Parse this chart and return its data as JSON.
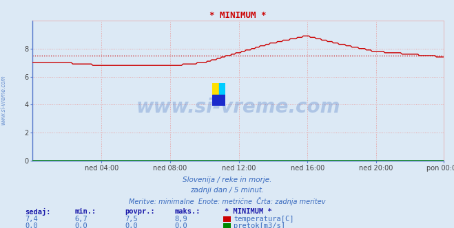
{
  "title": "* MINIMUM *",
  "background_color": "#dce9f5",
  "plot_bg_color": "#dce9f5",
  "grid_color": "#e8a0a0",
  "xlabel_ticks": [
    "ned 04:00",
    "ned 08:00",
    "ned 12:00",
    "ned 16:00",
    "ned 20:00",
    "pon 00:00"
  ],
  "ylim": [
    0,
    10
  ],
  "yticks": [
    0,
    2,
    4,
    6,
    8
  ],
  "temp_color": "#cc0000",
  "pretok_color": "#008800",
  "avg_line_color": "#cc0000",
  "avg_line_value": 7.5,
  "watermark_text": "www.si-vreme.com",
  "watermark_color": "#3a6bbf",
  "watermark_alpha": 0.28,
  "side_text": "www.si-vreme.com",
  "subtitle1": "Slovenija / reke in morje.",
  "subtitle2": "zadnji dan / 5 minut.",
  "subtitle3": "Meritve: minimalne  Enote: metrične  Črta: zadnja meritev",
  "subtitle_color": "#3a6bbf",
  "table_headers": [
    "sedaj:",
    "min.:",
    "povpr.:",
    "maks.:",
    "* MINIMUM *"
  ],
  "table_row1": [
    "7,4",
    "6,7",
    "7,5",
    "8,9"
  ],
  "table_row2": [
    "0,0",
    "0,0",
    "0,0",
    "0,0"
  ],
  "table_label1": "temperatura[C]",
  "table_label2": "pretok[m3/s]",
  "table_color": "#3a6bbf",
  "table_header_color": "#1a1aaa",
  "axis_color": "#5577cc",
  "tick_color": "#444444"
}
